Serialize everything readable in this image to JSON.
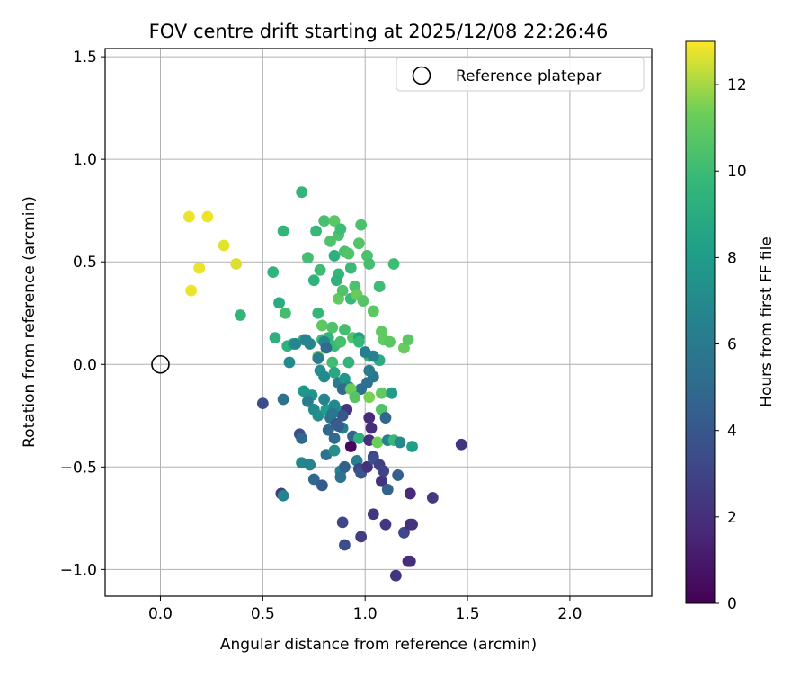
{
  "chart_data": {
    "type": "scatter",
    "title": "FOV centre drift starting at 2025/12/08 22:26:46",
    "xlabel": "Angular distance from reference (arcmin)",
    "ylabel": "Rotation from reference (arcmin)",
    "xlim": [
      -0.27,
      2.4
    ],
    "ylim": [
      -1.13,
      1.54
    ],
    "xticks": [
      0.0,
      0.5,
      1.0,
      1.5,
      2.0
    ],
    "xtick_labels": [
      "0.0",
      "0.5",
      "1.0",
      "1.5",
      "2.0"
    ],
    "yticks": [
      -1.0,
      -0.5,
      0.0,
      0.5,
      1.0,
      1.5
    ],
    "ytick_labels": [
      "−1.0",
      "−0.5",
      "0.0",
      "0.5",
      "1.0",
      "1.5"
    ],
    "grid": true,
    "legend": {
      "position": "top-right",
      "entries": [
        "Reference platepar"
      ]
    },
    "reference_point": {
      "x": 0.0,
      "y": 0.0,
      "label": "Reference platepar"
    },
    "colorbar": {
      "label": "Hours from first FF file",
      "range": [
        0,
        13
      ],
      "ticks": [
        0,
        2,
        4,
        6,
        8,
        10,
        12
      ],
      "tick_labels": [
        "0",
        "2",
        "4",
        "6",
        "8",
        "10",
        "12"
      ],
      "colormap": "viridis"
    },
    "points": [
      [
        0.14,
        0.72,
        12.8
      ],
      [
        0.23,
        0.72,
        12.8
      ],
      [
        0.31,
        0.58,
        12.7
      ],
      [
        0.19,
        0.47,
        12.8
      ],
      [
        0.37,
        0.49,
        12.6
      ],
      [
        0.15,
        0.36,
        12.8
      ],
      [
        0.39,
        0.24,
        9.6
      ],
      [
        0.55,
        0.45,
        9.5
      ],
      [
        0.6,
        0.65,
        9.6
      ],
      [
        0.69,
        0.84,
        9.6
      ],
      [
        0.58,
        0.3,
        9.0
      ],
      [
        0.61,
        0.25,
        10.2
      ],
      [
        0.56,
        0.13,
        9.3
      ],
      [
        0.62,
        0.09,
        9.4
      ],
      [
        0.65,
        0.1,
        8.0
      ],
      [
        0.7,
        0.12,
        9.3
      ],
      [
        0.72,
        0.52,
        10.2
      ],
      [
        0.75,
        0.41,
        9.4
      ],
      [
        0.76,
        0.65,
        9.8
      ],
      [
        0.78,
        0.46,
        10.0
      ],
      [
        0.8,
        0.7,
        10.3
      ],
      [
        0.83,
        0.6,
        10.5
      ],
      [
        0.85,
        0.7,
        10.8
      ],
      [
        0.85,
        0.53,
        9.2
      ],
      [
        0.87,
        0.63,
        10.4
      ],
      [
        0.88,
        0.66,
        10.0
      ],
      [
        0.9,
        0.55,
        10.4
      ],
      [
        0.92,
        0.54,
        10.6
      ],
      [
        0.98,
        0.68,
        10.4
      ],
      [
        0.97,
        0.59,
        10.6
      ],
      [
        1.01,
        0.53,
        10.4
      ],
      [
        1.02,
        0.49,
        10.2
      ],
      [
        0.93,
        0.47,
        9.9
      ],
      [
        0.87,
        0.44,
        9.7
      ],
      [
        0.86,
        0.41,
        9.4
      ],
      [
        0.95,
        0.38,
        10.4
      ],
      [
        1.07,
        0.38,
        10.0
      ],
      [
        1.14,
        0.49,
        10.0
      ],
      [
        0.87,
        0.32,
        11.0
      ],
      [
        0.89,
        0.36,
        10.5
      ],
      [
        0.93,
        0.32,
        9.8
      ],
      [
        0.96,
        0.34,
        11.2
      ],
      [
        0.99,
        0.31,
        10.7
      ],
      [
        1.04,
        0.26,
        10.9
      ],
      [
        0.77,
        0.25,
        9.7
      ],
      [
        0.79,
        0.19,
        10.9
      ],
      [
        0.84,
        0.18,
        10.5
      ],
      [
        0.9,
        0.17,
        10.2
      ],
      [
        0.94,
        0.13,
        10.6
      ],
      [
        1.08,
        0.16,
        11.0
      ],
      [
        1.09,
        0.12,
        11.0
      ],
      [
        1.12,
        0.11,
        10.8
      ],
      [
        1.19,
        0.08,
        11.2
      ],
      [
        1.21,
        0.12,
        10.8
      ],
      [
        0.79,
        0.12,
        9.9
      ],
      [
        0.82,
        0.13,
        9.6
      ],
      [
        0.85,
        0.09,
        9.9
      ],
      [
        0.88,
        0.11,
        10.3
      ],
      [
        0.77,
        0.04,
        11.6
      ],
      [
        0.84,
        0.01,
        10.1
      ],
      [
        0.92,
        0.01,
        9.5
      ],
      [
        0.97,
        0.13,
        8.4
      ],
      [
        0.97,
        0.11,
        9.7
      ],
      [
        1.02,
        0.04,
        9.3
      ],
      [
        1.07,
        0.02,
        9.0
      ],
      [
        0.63,
        0.01,
        7.0
      ],
      [
        0.66,
        0.1,
        6.8
      ],
      [
        0.71,
        0.12,
        6.5
      ],
      [
        0.73,
        0.1,
        6.7
      ],
      [
        0.77,
        0.03,
        6.1
      ],
      [
        0.8,
        0.11,
        6.6
      ],
      [
        0.81,
        0.08,
        5.0
      ],
      [
        0.78,
        -0.03,
        7.2
      ],
      [
        0.8,
        -0.06,
        6.9
      ],
      [
        0.85,
        -0.04,
        8.8
      ],
      [
        0.87,
        -0.09,
        6.1
      ],
      [
        0.9,
        -0.07,
        7.7
      ],
      [
        0.92,
        -0.11,
        6.8
      ],
      [
        0.89,
        -0.12,
        5.2
      ],
      [
        0.95,
        -0.14,
        5.0
      ],
      [
        0.98,
        -0.12,
        5.3
      ],
      [
        1.01,
        -0.09,
        5.4
      ],
      [
        1.04,
        -0.06,
        5.8
      ],
      [
        1.02,
        -0.03,
        6.2
      ],
      [
        1.0,
        0.06,
        6.3
      ],
      [
        1.04,
        0.04,
        6.5
      ],
      [
        1.02,
        -0.16,
        11.5
      ],
      [
        1.08,
        -0.14,
        11.0
      ],
      [
        1.13,
        -0.14,
        8.0
      ],
      [
        0.93,
        -0.12,
        11.2
      ],
      [
        0.95,
        -0.16,
        10.7
      ],
      [
        0.7,
        -0.13,
        7.8
      ],
      [
        0.74,
        -0.15,
        7.6
      ],
      [
        0.72,
        -0.18,
        6.2
      ],
      [
        0.75,
        -0.22,
        7.0
      ],
      [
        0.77,
        -0.25,
        7.2
      ],
      [
        0.81,
        -0.22,
        8.1
      ],
      [
        0.85,
        -0.2,
        6.9
      ],
      [
        0.8,
        -0.17,
        6.6
      ],
      [
        0.83,
        -0.26,
        5.5
      ],
      [
        0.88,
        -0.23,
        6.9
      ],
      [
        0.91,
        -0.22,
        2.3
      ],
      [
        0.89,
        -0.25,
        4.0
      ],
      [
        0.86,
        -0.29,
        3.9
      ],
      [
        0.82,
        -0.32,
        4.8
      ],
      [
        0.85,
        -0.36,
        5.0
      ],
      [
        0.89,
        -0.31,
        6.2
      ],
      [
        0.94,
        -0.35,
        4.6
      ],
      [
        0.97,
        -0.36,
        9.3
      ],
      [
        1.02,
        -0.26,
        1.8
      ],
      [
        1.03,
        -0.31,
        1.9
      ],
      [
        1.02,
        -0.37,
        2.0
      ],
      [
        1.04,
        -0.45,
        3.0
      ],
      [
        1.06,
        -0.38,
        11.3
      ],
      [
        1.08,
        -0.22,
        10.5
      ],
      [
        1.1,
        -0.26,
        4.8
      ],
      [
        1.11,
        -0.37,
        6.5
      ],
      [
        1.14,
        -0.37,
        9.8
      ],
      [
        1.17,
        -0.38,
        6.9
      ],
      [
        1.23,
        -0.4,
        8.2
      ],
      [
        1.47,
        -0.39,
        2.2
      ],
      [
        0.5,
        -0.19,
        3.5
      ],
      [
        0.6,
        -0.17,
        5.5
      ],
      [
        0.59,
        -0.63,
        2.5
      ],
      [
        0.6,
        -0.64,
        6.5
      ],
      [
        0.68,
        -0.34,
        3.6
      ],
      [
        0.69,
        -0.36,
        4.8
      ],
      [
        0.69,
        -0.48,
        6.6
      ],
      [
        0.73,
        -0.49,
        6.5
      ],
      [
        0.75,
        -0.56,
        4.9
      ],
      [
        0.79,
        -0.59,
        4.2
      ],
      [
        0.81,
        -0.44,
        5.5
      ],
      [
        0.85,
        -0.42,
        7.3
      ],
      [
        0.88,
        -0.52,
        6.6
      ],
      [
        0.9,
        -0.5,
        4.4
      ],
      [
        0.88,
        -0.55,
        5.5
      ],
      [
        0.93,
        -0.4,
        0.3
      ],
      [
        0.96,
        -0.47,
        6.3
      ],
      [
        0.97,
        -0.51,
        3.2
      ],
      [
        0.98,
        -0.53,
        3.9
      ],
      [
        1.01,
        -0.5,
        2.1
      ],
      [
        1.04,
        -0.46,
        3.5
      ],
      [
        1.07,
        -0.49,
        2.8
      ],
      [
        1.09,
        -0.52,
        3.0
      ],
      [
        1.08,
        -0.57,
        2.2
      ],
      [
        1.11,
        -0.61,
        4.6
      ],
      [
        1.16,
        -0.54,
        4.4
      ],
      [
        1.22,
        -0.63,
        1.7
      ],
      [
        1.33,
        -0.65,
        2.5
      ],
      [
        0.89,
        -0.77,
        3.1
      ],
      [
        0.9,
        -0.88,
        3.5
      ],
      [
        0.98,
        -0.84,
        2.6
      ],
      [
        1.04,
        -0.73,
        2.4
      ],
      [
        1.1,
        -0.78,
        2.4
      ],
      [
        1.19,
        -0.82,
        3.2
      ],
      [
        1.22,
        -0.78,
        1.9
      ],
      [
        1.23,
        -0.78,
        2.2
      ],
      [
        1.21,
        -0.96,
        1.6
      ],
      [
        1.22,
        -0.96,
        1.9
      ],
      [
        1.15,
        -1.03,
        2.2
      ],
      [
        0.87,
        -0.3,
        4.3
      ],
      [
        0.84,
        -0.24,
        5.7
      ]
    ]
  }
}
